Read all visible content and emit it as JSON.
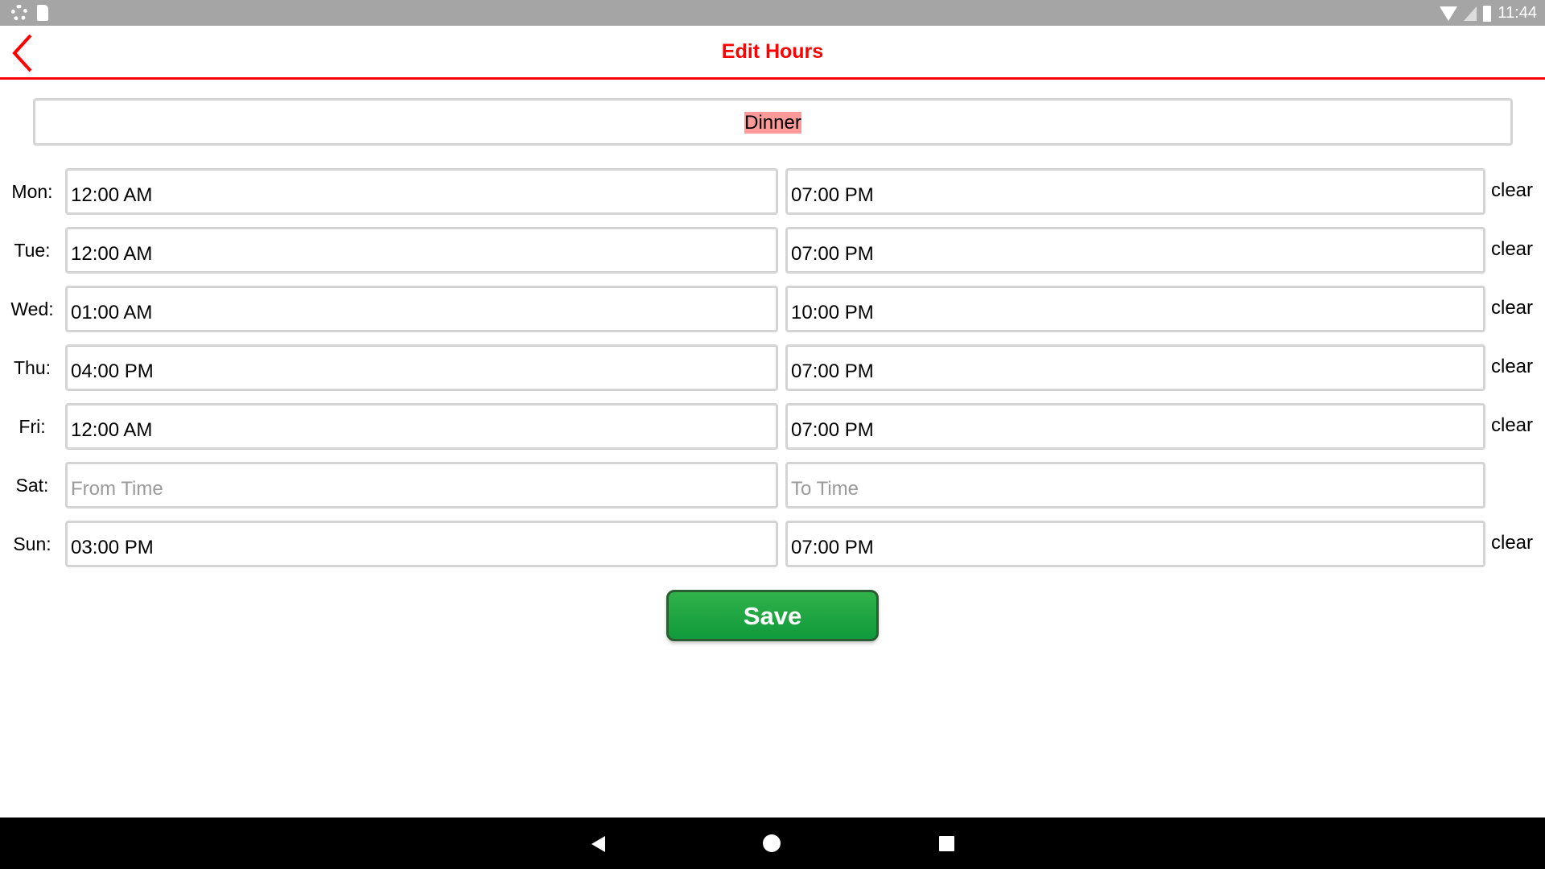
{
  "status_bar": {
    "time": "11:44"
  },
  "header": {
    "title": "Edit Hours"
  },
  "schedule_name": "Dinner",
  "rows": [
    {
      "day": "Mon:",
      "from": "12:00 AM",
      "to": "07:00 PM",
      "clear": "clear"
    },
    {
      "day": "Tue:",
      "from": "12:00 AM",
      "to": "07:00 PM",
      "clear": "clear"
    },
    {
      "day": "Wed:",
      "from": "01:00 AM",
      "to": "10:00 PM",
      "clear": "clear"
    },
    {
      "day": "Thu:",
      "from": "04:00 PM",
      "to": "07:00 PM",
      "clear": "clear"
    },
    {
      "day": "Fri:",
      "from": "12:00 AM",
      "to": "07:00 PM",
      "clear": "clear"
    },
    {
      "day": "Sat:",
      "from": "",
      "to": "",
      "from_placeholder": "From Time",
      "to_placeholder": "To Time"
    },
    {
      "day": "Sun:",
      "from": "03:00 PM",
      "to": "07:00 PM",
      "clear": "clear"
    }
  ],
  "save_label": "Save",
  "colors": {
    "accent": "#ff0000",
    "save": "#1fa544",
    "highlight": "#ff9a9a"
  }
}
